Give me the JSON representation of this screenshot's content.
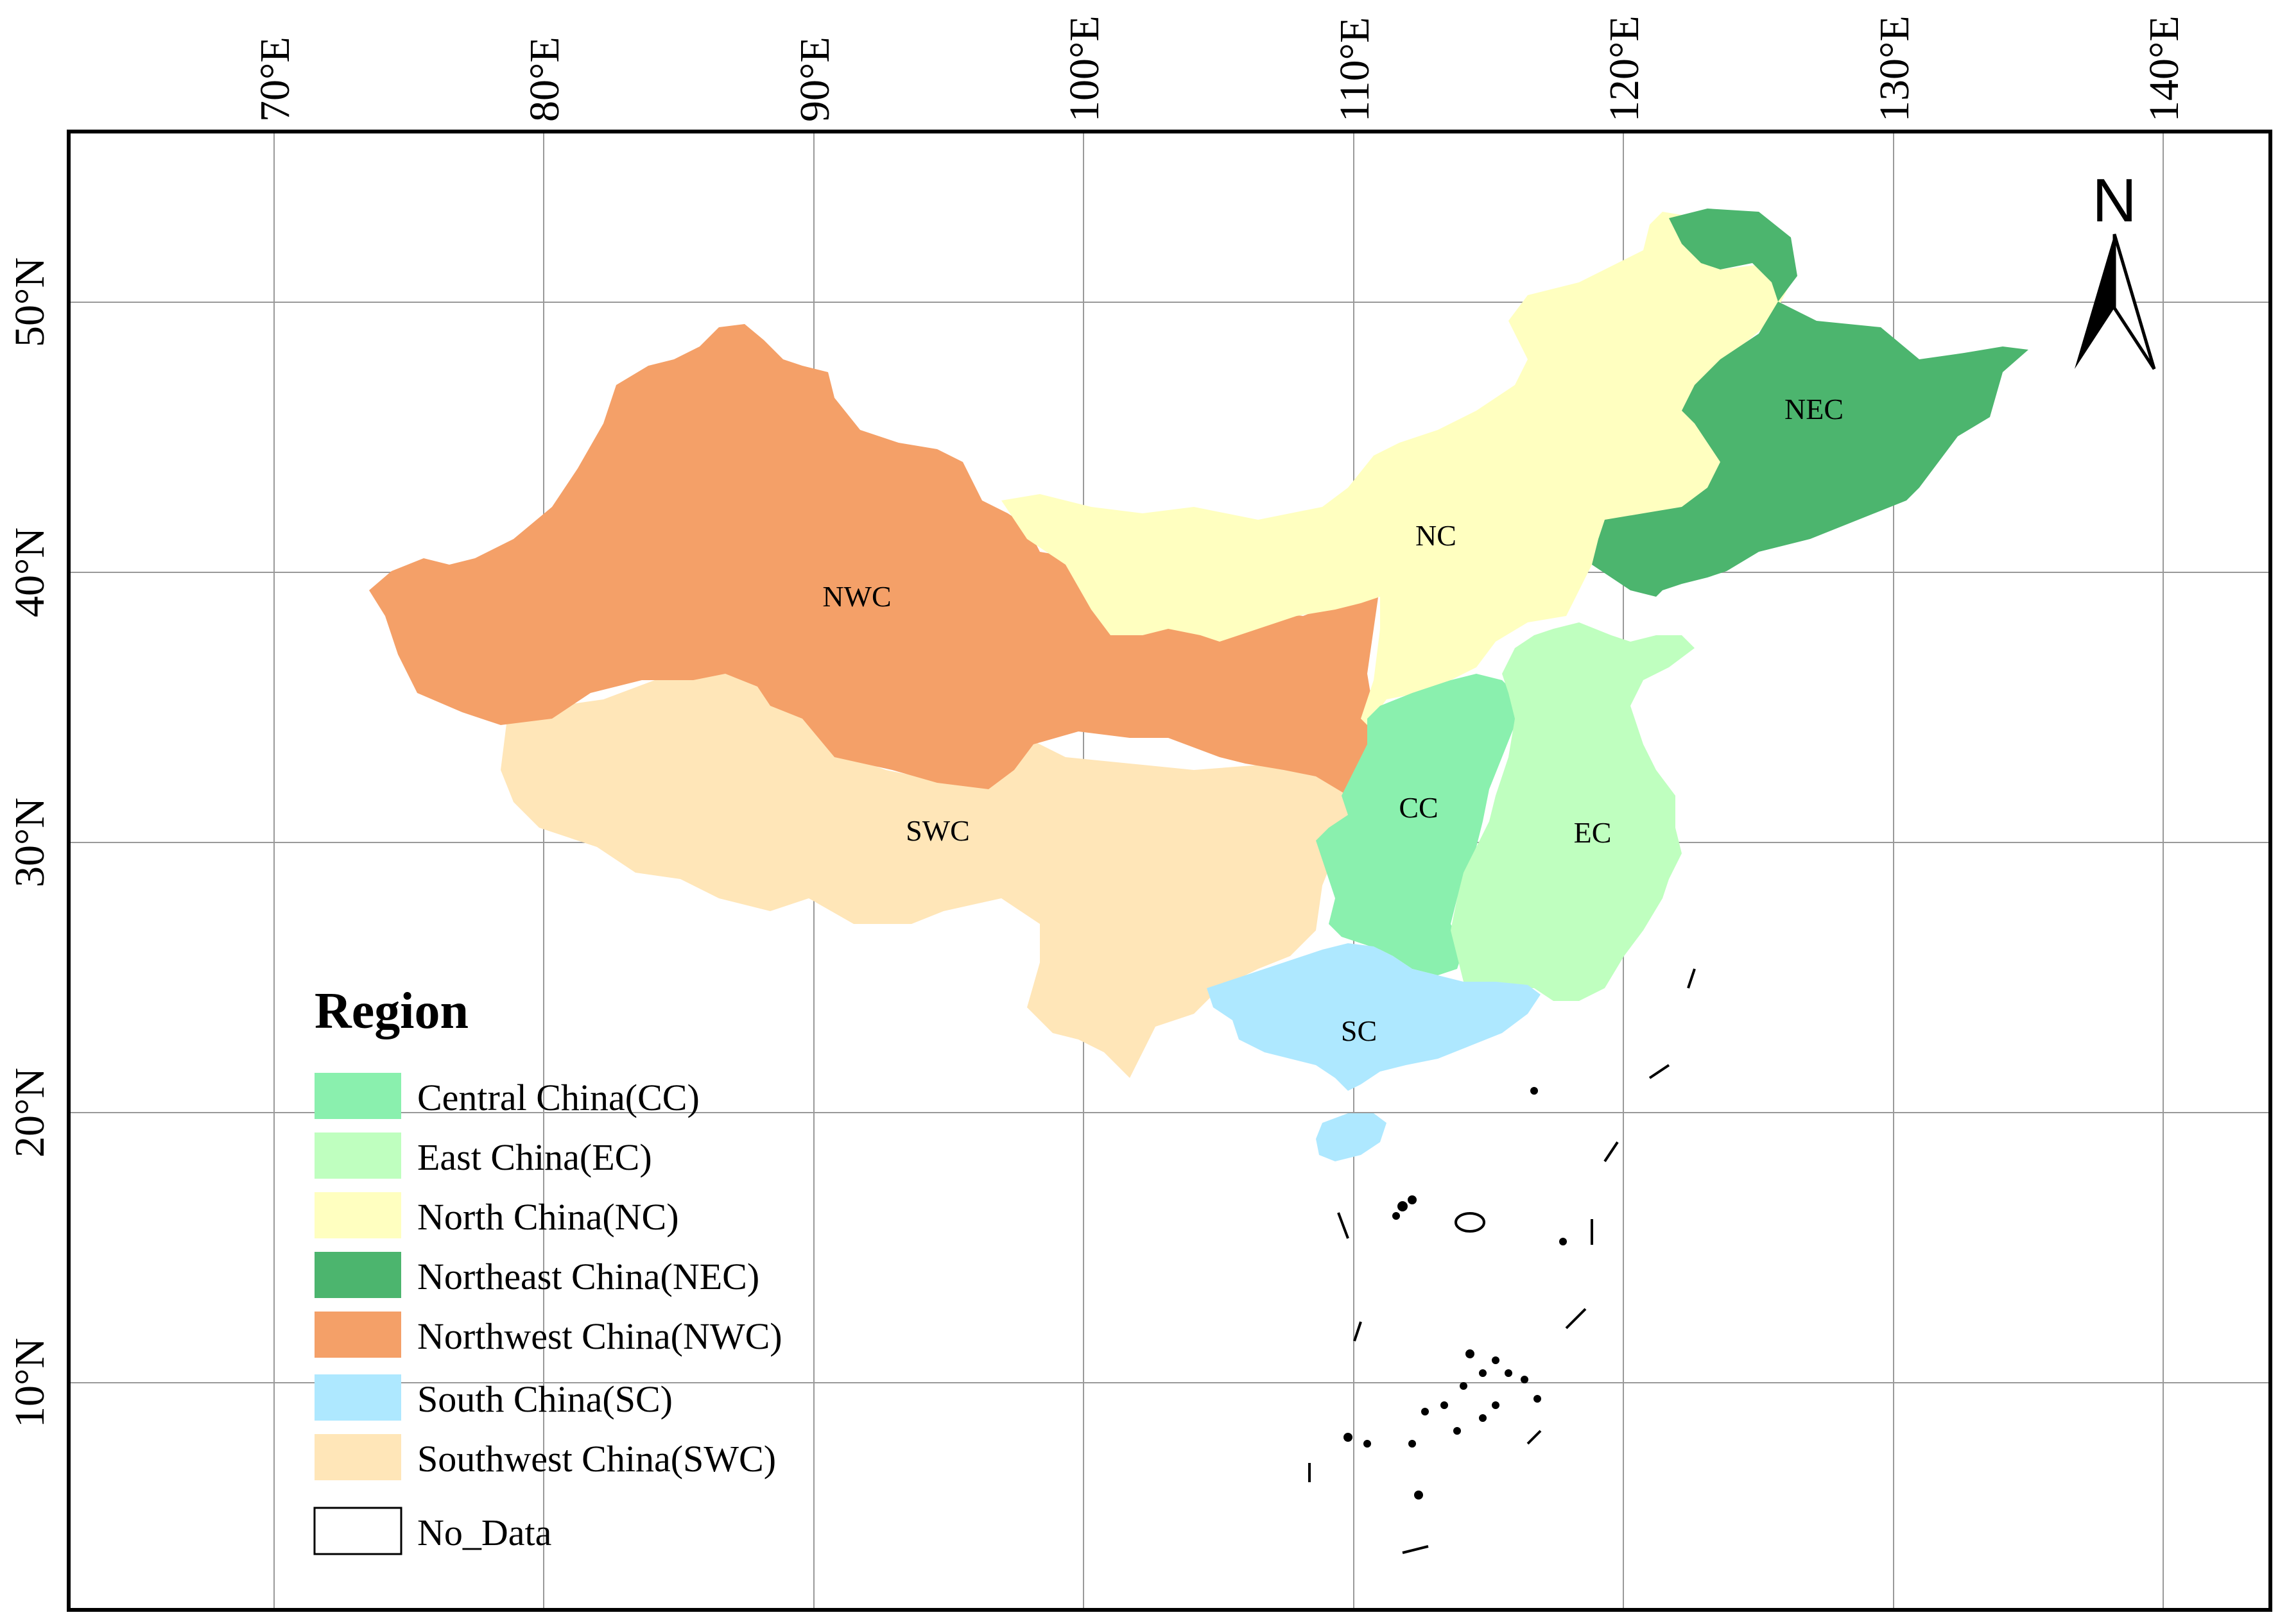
{
  "map": {
    "lon_labels": [
      "70°E",
      "80°E",
      "90°E",
      "100°E",
      "110°E",
      "120°E",
      "130°E",
      "140°E"
    ],
    "lat_labels": [
      "50°N",
      "40°N",
      "30°N",
      "20°N",
      "10°N"
    ],
    "north_arrow": {
      "letter": "N",
      "icon": "north-arrow-icon"
    },
    "regions": [
      {
        "code": "NWC",
        "label": "NWC",
        "color": "#F4A068"
      },
      {
        "code": "NC",
        "label": "NC",
        "color": "#FFFFC0"
      },
      {
        "code": "NEC",
        "label": "NEC",
        "color": "#4CB56E"
      },
      {
        "code": "CC",
        "label": "CC",
        "color": "#8AF0AE"
      },
      {
        "code": "EC",
        "label": "EC",
        "color": "#BFFFBF"
      },
      {
        "code": "SWC",
        "label": "SWC",
        "color": "#FFE6B8"
      },
      {
        "code": "SC",
        "label": "SC",
        "color": "#AEE8FF"
      }
    ]
  },
  "legend": {
    "title": "Region",
    "items": [
      {
        "label": "Central China(CC)",
        "color": "#8AF0AE"
      },
      {
        "label": "East China(EC)",
        "color": "#BFFFBF"
      },
      {
        "label": "North China(NC)",
        "color": "#FFFFC0"
      },
      {
        "label": "Northeast China(NEC)",
        "color": "#4CB56E"
      },
      {
        "label": "Northwest China(NWC)",
        "color": "#F4A068"
      },
      {
        "label": "South China(SC)",
        "color": "#AEE8FF"
      },
      {
        "label": "Southwest China(SWC)",
        "color": "#FFE6B8"
      },
      {
        "label": "No_Data",
        "color": "#FFFFFF"
      }
    ]
  }
}
